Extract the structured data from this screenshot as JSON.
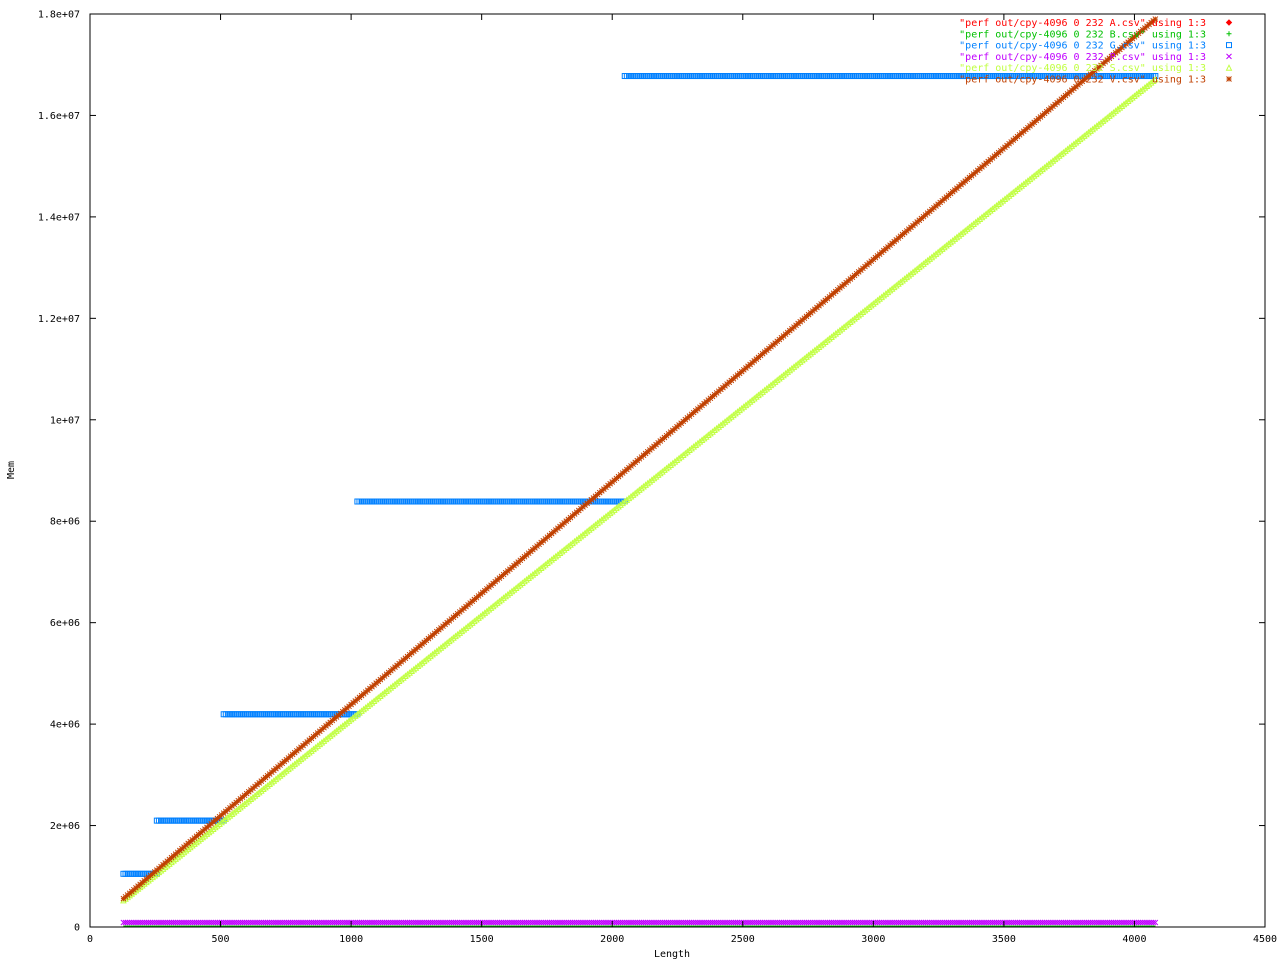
{
  "chart_data": {
    "type": "scatter",
    "title": "",
    "xlabel": "Length",
    "ylabel": "Mem",
    "xlim": [
      0,
      4500
    ],
    "ylim": [
      0,
      18000000
    ],
    "x_ticks": [
      0,
      500,
      1000,
      1500,
      2000,
      2500,
      3000,
      3500,
      4000,
      4500
    ],
    "y_ticks": [
      0,
      2000000,
      4000000,
      6000000,
      8000000,
      10000000,
      12000000,
      14000000,
      16000000,
      18000000
    ],
    "x_tick_labels": [
      "0",
      "500",
      "1000",
      "1500",
      "2000",
      "2500",
      "3000",
      "3500",
      "4000",
      "4500"
    ],
    "y_tick_labels": [
      "0",
      "2e+06",
      "4e+06",
      "6e+06",
      "8e+06",
      "1e+07",
      "1.2e+07",
      "1.4e+07",
      "1.6e+07",
      "1.8e+07"
    ],
    "grid": false,
    "legend_position": "top-right",
    "series": [
      {
        "name": "\"perf out/cpy-4096 0 232 A.csv\" using 1:3",
        "color": "#ff0000",
        "marker": "diamond",
        "description_points": [
          [
            128,
            0
          ],
          [
            4080,
            0
          ]
        ]
      },
      {
        "name": "\"perf out/cpy-4096 0 232 B.csv\" using 1:3",
        "color": "#00c000",
        "marker": "plus",
        "description_points": [
          [
            128,
            0
          ],
          [
            4080,
            0
          ]
        ]
      },
      {
        "name": "\"perf out/cpy-4096 0 232 G.csv\" using 1:3",
        "color": "#0080ff",
        "marker": "square",
        "segments": [
          {
            "x": [
              128,
              256
            ],
            "y": 1048576
          },
          {
            "x": [
              256,
              512
            ],
            "y": 2097152
          },
          {
            "x": [
              512,
              1024
            ],
            "y": 4194304
          },
          {
            "x": [
              1024,
              2048
            ],
            "y": 8388608
          },
          {
            "x": [
              2048,
              4080
            ],
            "y": 16777216
          }
        ]
      },
      {
        "name": "\"perf out/cpy-4096 0 232 P.csv\" using 1:3",
        "color": "#c000ff",
        "marker": "cross",
        "constant": {
          "x": [
            128,
            4080
          ],
          "y": 50000
        }
      },
      {
        "name": "\"perf out/cpy-4096 0 232 S.csv\" using 1:3",
        "color": "#c0ff40",
        "marker": "triangle",
        "line": {
          "x": [
            128,
            4080
          ],
          "y": [
            524288,
            16711680
          ]
        }
      },
      {
        "name": "\"perf out/cpy-4096 0 232 V.csv\" using 1:3",
        "color": "#c04000",
        "marker": "star",
        "line": {
          "x": [
            128,
            4080
          ],
          "y": [
            560000,
            17900000
          ]
        }
      }
    ]
  }
}
